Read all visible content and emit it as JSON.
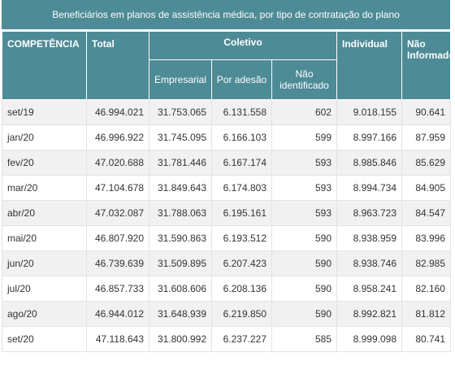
{
  "caption": "Beneficiários em planos de assistência médica, por tipo de contratação do plano",
  "headers": {
    "competencia": "COMPETÊNCIA",
    "total": "Total",
    "coletivo": "Coletivo",
    "empresarial": "Empresarial",
    "por_adesao": "Por adesão",
    "nao_identificado": "Não identificado",
    "individual": "Individual",
    "nao_informado": "Não Informado"
  },
  "rows": [
    {
      "competencia": "set/19",
      "total": "46.994.021",
      "empresarial": "31.753.065",
      "por_adesao": "6.131.558",
      "nao_identificado": "602",
      "individual": "9.018.155",
      "nao_informado": "90.641"
    },
    {
      "competencia": "jan/20",
      "total": "46.996.922",
      "empresarial": "31.745.095",
      "por_adesao": "6.166.103",
      "nao_identificado": "599",
      "individual": "8.997.166",
      "nao_informado": "87.959"
    },
    {
      "competencia": "fev/20",
      "total": "47.020.688",
      "empresarial": "31.781.446",
      "por_adesao": "6.167.174",
      "nao_identificado": "593",
      "individual": "8.985.846",
      "nao_informado": "85.629"
    },
    {
      "competencia": "mar/20",
      "total": "47.104.678",
      "empresarial": "31.849.643",
      "por_adesao": "6.174.803",
      "nao_identificado": "593",
      "individual": "8.994.734",
      "nao_informado": "84.905"
    },
    {
      "competencia": "abr/20",
      "total": "47.032.087",
      "empresarial": "31.788.063",
      "por_adesao": "6.195.161",
      "nao_identificado": "593",
      "individual": "8.963.723",
      "nao_informado": "84.547"
    },
    {
      "competencia": "mai/20",
      "total": "46.807.920",
      "empresarial": "31.590.863",
      "por_adesao": "6.193.512",
      "nao_identificado": "590",
      "individual": "8.938.959",
      "nao_informado": "83.996"
    },
    {
      "competencia": "jun/20",
      "total": "46.739.639",
      "empresarial": "31.509.895",
      "por_adesao": "6.207.423",
      "nao_identificado": "590",
      "individual": "8.938.746",
      "nao_informado": "82.985"
    },
    {
      "competencia": "jul/20",
      "total": "46.857.733",
      "empresarial": "31.608.606",
      "por_adesao": "6.208.136",
      "nao_identificado": "590",
      "individual": "8.958.241",
      "nao_informado": "82.160"
    },
    {
      "competencia": "ago/20",
      "total": "46.944.012",
      "empresarial": "31.648.939",
      "por_adesao": "6.219.850",
      "nao_identificado": "590",
      "individual": "8.992.821",
      "nao_informado": "81.812"
    },
    {
      "competencia": "set/20",
      "total": "47.118.643",
      "empresarial": "31.800.992",
      "por_adesao": "6.237.227",
      "nao_identificado": "585",
      "individual": "8.999.098",
      "nao_informado": "80.741"
    }
  ]
}
